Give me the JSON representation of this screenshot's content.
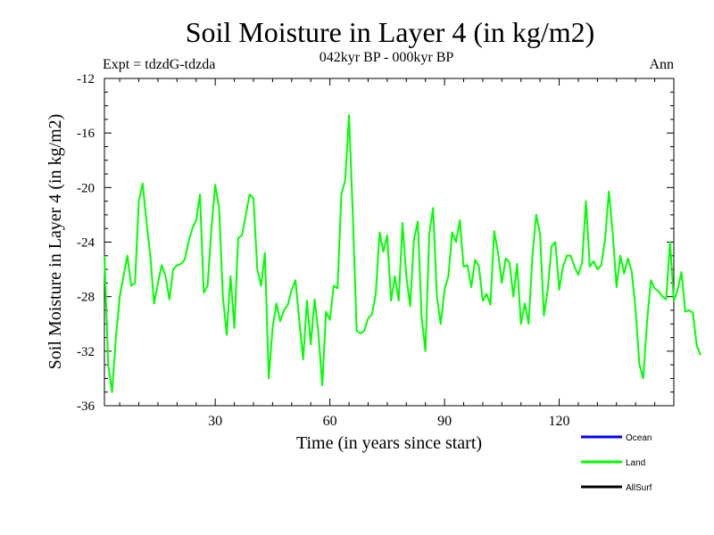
{
  "chart_data": {
    "type": "line",
    "title": "Soil Moisture in Layer 4 (in kg/m2)",
    "subtitle": "042kyr BP - 000kyr BP",
    "experiment_label": "Expt = tdzdG-tdzda",
    "period_label": "Ann",
    "xlabel": "Time (in years since start)",
    "ylabel": "Soil Moisture in Layer 4 (in kg/m2)",
    "xlim": [
      1,
      150
    ],
    "ylim": [
      -36,
      -12
    ],
    "xticks": [
      30,
      60,
      90,
      120
    ],
    "yticks": [
      -12,
      -16,
      -20,
      -24,
      -28,
      -32,
      -36
    ],
    "legend_position": "bottom-right",
    "series": [
      {
        "name": "Ocean",
        "color": "#0000ff",
        "values": []
      },
      {
        "name": "Land",
        "color": "#00ff00",
        "values": [
          -25.0,
          -33.0,
          -35.0,
          -31.0,
          -28.0,
          -26.5,
          -25.0,
          -27.2,
          -27.0,
          -21.0,
          -19.7,
          -22.5,
          -25.0,
          -28.5,
          -27.0,
          -25.7,
          -26.5,
          -28.2,
          -26.0,
          -25.7,
          -25.6,
          -25.3,
          -24.0,
          -23.0,
          -22.4,
          -20.5,
          -27.7,
          -27.2,
          -23.0,
          -19.8,
          -21.5,
          -28.0,
          -30.8,
          -26.5,
          -30.3,
          -23.7,
          -23.5,
          -22.0,
          -20.5,
          -20.8,
          -26.0,
          -27.2,
          -24.8,
          -34.0,
          -30.3,
          -28.5,
          -29.8,
          -29.0,
          -28.6,
          -27.5,
          -26.8,
          -29.8,
          -32.6,
          -28.3,
          -31.5,
          -28.2,
          -30.7,
          -34.5,
          -29.1,
          -29.7,
          -27.2,
          -27.4,
          -20.5,
          -19.5,
          -14.7,
          -22.0,
          -30.5,
          -30.7,
          -30.5,
          -29.6,
          -29.3,
          -27.8,
          -23.3,
          -24.7,
          -23.5,
          -28.3,
          -26.5,
          -28.3,
          -22.6,
          -26.5,
          -28.7,
          -23.8,
          -22.5,
          -29.5,
          -32.0,
          -23.4,
          -21.5,
          -28.0,
          -30.0,
          -27.5,
          -26.5,
          -23.3,
          -24.0,
          -22.4,
          -25.8,
          -25.7,
          -27.3,
          -25.3,
          -25.8,
          -28.3,
          -27.8,
          -28.6,
          -23.2,
          -24.8,
          -27.0,
          -25.2,
          -25.5,
          -28.0,
          -25.6,
          -30.0,
          -28.5,
          -30.0,
          -25.0,
          -22.0,
          -23.4,
          -29.4,
          -27.5,
          -24.3,
          -24.0,
          -27.5,
          -25.8,
          -25.0,
          -25.0,
          -25.8,
          -26.4,
          -25.5,
          -21.0,
          -25.8,
          -25.4,
          -26.0,
          -25.7,
          -23.8,
          -20.3,
          -23.3,
          -27.3,
          -25.0,
          -26.3,
          -25.2,
          -26.2,
          -29.0,
          -33.0,
          -34.0,
          -29.8,
          -26.8,
          -27.4,
          -27.6,
          -28.0,
          -28.2,
          -24.0,
          -28.3,
          -27.5,
          -26.2,
          -29.1,
          -29.0,
          -29.2,
          -31.6,
          -32.3
        ]
      },
      {
        "name": "AllSurf",
        "color": "#000000",
        "values": []
      }
    ]
  }
}
